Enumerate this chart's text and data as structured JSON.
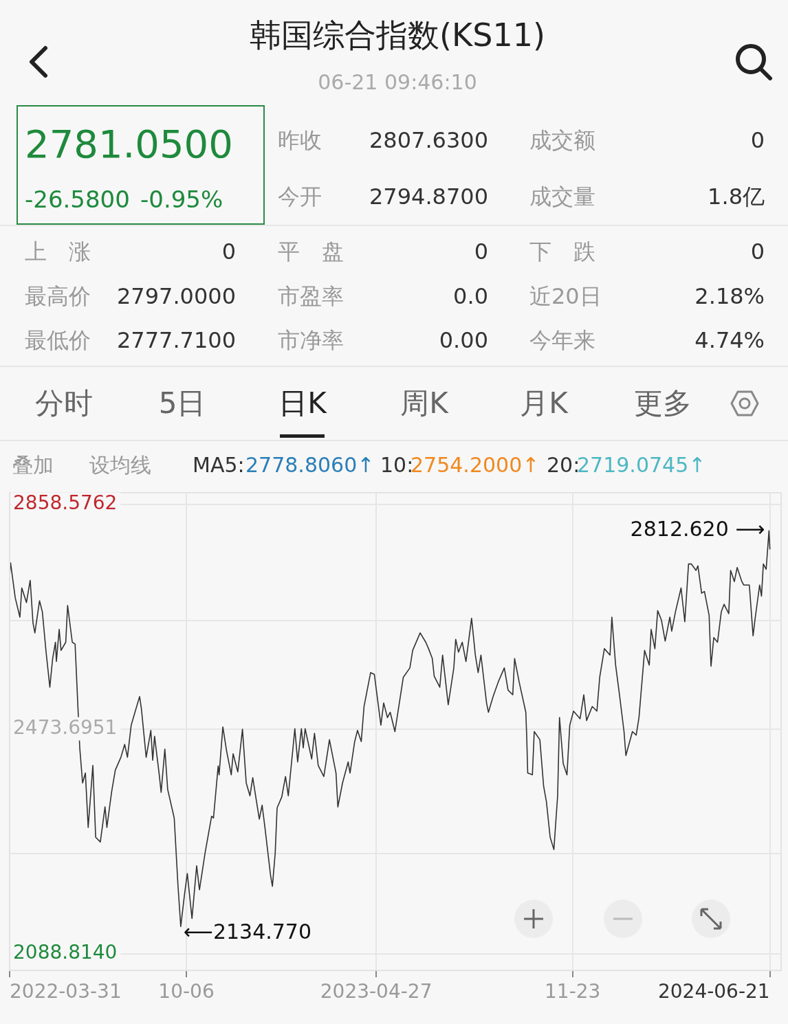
{
  "chart_data": {
    "type": "line",
    "title": "韩国综合指数(KS11)",
    "subtitle": "06-21 09:46:10",
    "color": "#333333",
    "x": [
      "2022-03-31",
      "2022-04-01",
      "2022-04-06",
      "2022-04-11",
      "2022-04-13",
      "2022-04-18",
      "2022-04-22",
      "2022-04-25",
      "2022-04-27",
      "2022-05-02",
      "2022-05-05",
      "2022-05-09",
      "2022-05-13",
      "2022-05-16",
      "2022-05-19",
      "2022-05-20",
      "2022-05-23",
      "2022-05-25",
      "2022-05-30",
      "2022-06-01",
      "2022-06-06",
      "2022-06-09",
      "2022-06-14",
      "2022-06-17",
      "2022-06-20",
      "2022-06-23",
      "2022-06-28",
      "2022-07-01",
      "2022-07-06",
      "2022-07-11",
      "2022-07-13",
      "2022-07-18",
      "2022-07-22",
      "2022-07-28",
      "2022-08-01",
      "2022-08-04",
      "2022-08-08",
      "2022-08-12",
      "2022-08-17",
      "2022-08-19",
      "2022-08-24",
      "2022-08-29",
      "2022-08-31",
      "2022-09-02",
      "2022-09-07",
      "2022-09-09",
      "2022-09-13",
      "2022-09-16",
      "2022-09-23",
      "2022-09-27",
      "2022-09-30",
      "2022-10-04",
      "2022-10-07",
      "2022-10-12",
      "2022-10-17",
      "2022-10-20",
      "2022-10-26",
      "2022-11-02",
      "2022-11-04",
      "2022-11-09",
      "2022-11-10",
      "2022-11-14",
      "2022-11-18",
      "2022-11-23",
      "2022-11-25",
      "2022-11-30",
      "2022-12-05",
      "2022-12-09",
      "2022-12-13",
      "2022-12-16",
      "2022-12-20",
      "2022-12-23",
      "2022-12-26",
      "2022-12-29",
      "2023-01-04",
      "2023-01-06",
      "2023-01-09",
      "2023-01-11",
      "2023-01-16",
      "2023-01-20",
      "2023-01-23",
      "2023-01-30",
      "2023-02-02",
      "2023-02-06",
      "2023-02-08",
      "2023-02-10",
      "2023-02-17",
      "2023-02-20",
      "2023-02-24",
      "2023-03-02",
      "2023-03-08",
      "2023-03-15",
      "2023-03-17",
      "2023-03-22",
      "2023-03-28",
      "2023-03-30",
      "2023-04-04",
      "2023-04-07",
      "2023-04-11",
      "2023-04-14",
      "2023-04-21",
      "2023-04-25",
      "2023-05-02",
      "2023-05-05",
      "2023-05-09",
      "2023-05-12",
      "2023-05-17",
      "2023-05-26",
      "2023-06-02",
      "2023-06-05",
      "2023-06-13",
      "2023-06-19",
      "2023-06-22",
      "2023-06-26",
      "2023-06-28",
      "2023-07-04",
      "2023-07-07",
      "2023-07-13",
      "2023-07-19",
      "2023-07-21",
      "2023-07-24",
      "2023-07-28",
      "2023-08-01",
      "2023-08-07",
      "2023-08-11",
      "2023-08-14",
      "2023-08-17",
      "2023-08-23",
      "2023-08-25",
      "2023-08-30",
      "2023-09-05",
      "2023-09-11",
      "2023-09-15",
      "2023-09-20",
      "2023-09-22",
      "2023-09-27",
      "2023-10-04",
      "2023-10-05",
      "2023-10-06",
      "2023-10-11",
      "2023-10-13",
      "2023-10-19",
      "2023-10-23",
      "2023-10-26",
      "2023-10-30",
      "2023-11-03",
      "2023-11-07",
      "2023-11-09",
      "2023-11-13",
      "2023-11-17",
      "2023-11-20",
      "2023-11-24",
      "2023-12-01",
      "2023-12-05",
      "2023-12-08",
      "2023-12-14",
      "2023-12-19",
      "2023-12-22",
      "2023-12-27",
      "2024-01-02",
      "2024-01-04",
      "2024-01-08",
      "2024-01-12",
      "2024-01-17",
      "2024-01-19",
      "2024-01-26",
      "2024-01-30",
      "2024-02-02",
      "2024-02-08",
      "2024-02-13",
      "2024-02-15",
      "2024-02-19",
      "2024-02-22",
      "2024-02-26",
      "2024-03-01",
      "2024-03-06",
      "2024-03-08",
      "2024-03-12",
      "2024-03-18",
      "2024-03-22",
      "2024-03-26",
      "2024-03-29",
      "2024-04-03",
      "2024-04-05",
      "2024-04-09",
      "2024-04-12",
      "2024-04-17",
      "2024-04-19",
      "2024-04-22",
      "2024-04-26",
      "2024-04-30",
      "2024-05-03",
      "2024-05-08",
      "2024-05-10",
      "2024-05-14",
      "2024-05-17",
      "2024-05-22",
      "2024-05-24",
      "2024-05-30",
      "2024-06-03",
      "2024-06-05",
      "2024-06-10",
      "2024-06-12",
      "2024-06-14",
      "2024-06-17",
      "2024-06-20",
      "2024-06-21"
    ],
    "values": [
      2736,
      2758,
      2698,
      2665,
      2715,
      2690,
      2728,
      2655,
      2638,
      2693,
      2674,
      2605,
      2545,
      2594,
      2622,
      2589,
      2644,
      2608,
      2622,
      2685,
      2622,
      2619,
      2441,
      2381,
      2398,
      2305,
      2411,
      2288,
      2280,
      2340,
      2305,
      2365,
      2403,
      2425,
      2447,
      2425,
      2480,
      2502,
      2529,
      2507,
      2425,
      2471,
      2420,
      2461,
      2395,
      2365,
      2439,
      2370,
      2321,
      2206,
      2135,
      2190,
      2226,
      2149,
      2239,
      2198,
      2261,
      2324,
      2321,
      2410,
      2395,
      2477,
      2436,
      2395,
      2431,
      2400,
      2473,
      2381,
      2359,
      2390,
      2349,
      2319,
      2343,
      2305,
      2223,
      2204,
      2261,
      2338,
      2357,
      2392,
      2359,
      2474,
      2417,
      2474,
      2441,
      2474,
      2422,
      2466,
      2411,
      2392,
      2455,
      2398,
      2340,
      2381,
      2417,
      2398,
      2452,
      2471,
      2452,
      2512,
      2570,
      2567,
      2480,
      2518,
      2493,
      2502,
      2469,
      2562,
      2578,
      2608,
      2638,
      2622,
      2611,
      2594,
      2564,
      2545,
      2600,
      2515,
      2578,
      2627,
      2605,
      2622,
      2589,
      2663,
      2600,
      2570,
      2600,
      2518,
      2502,
      2529,
      2556,
      2578,
      2540,
      2532,
      2594,
      2553,
      2502,
      2458,
      2398,
      2395,
      2469,
      2455,
      2376,
      2349,
      2288,
      2267,
      2359,
      2493,
      2414,
      2395,
      2480,
      2504,
      2491,
      2532,
      2488,
      2512,
      2504,
      2562,
      2611,
      2600,
      2665,
      2583,
      2534,
      2469,
      2428,
      2469,
      2463,
      2493,
      2608,
      2583,
      2644,
      2611,
      2676,
      2660,
      2624,
      2665,
      2641,
      2674,
      2715,
      2657,
      2756,
      2756,
      2745,
      2753,
      2706,
      2709,
      2668,
      2581,
      2630,
      2622,
      2674,
      2687,
      2671,
      2745,
      2726,
      2750,
      2726,
      2720,
      2720,
      2633,
      2660,
      2720,
      2701,
      2756,
      2747,
      2813,
      2781
    ],
    "xlim": [
      "2022-03-31",
      "2024-07-03"
    ],
    "xticks": [
      "2022-03-31",
      {
        "value": "2022-10-06",
        "label": "10-06"
      },
      "2023-04-27",
      {
        "value": "2023-11-23",
        "label": "11-23"
      },
      "2024-06-21"
    ],
    "ylim": [
      2060,
      2878
    ],
    "yticks": [
      2858.5762,
      {
        "value": 2659,
        "label": null
      },
      2473.6951,
      {
        "value": 2260,
        "label": null
      },
      {
        "value": 2088.814,
        "label": "2088.8140"
      }
    ],
    "grid": true,
    "annotations": [
      "2781.0500",
      "-26.5800",
      "-0.95%",
      "昨收",
      "2807.6300",
      "成交额",
      "0",
      "今开",
      "2794.8700",
      "成交量",
      "1.8亿",
      "上　涨",
      "0",
      "平　盘",
      "0",
      "下　跌",
      "0",
      "最高价",
      "2797.0000",
      "市盈率",
      "0.0",
      "近20日",
      "2.18%",
      "最低价",
      "2777.7100",
      "市净率",
      "0.00",
      "今年来",
      "4.74%",
      "分时",
      "5日",
      "日K",
      "周K",
      "月K",
      "更多",
      "叠加",
      "设均线",
      "MA5:",
      "2778.8060↑",
      "10:",
      "2754.2000↑",
      "20:",
      "2719.0745↑",
      {
        "text": "2812.620 ⟶",
        "x": "2024-06-20",
        "y": 2812.62
      },
      {
        "text": "⟵2134.770",
        "x": "2022-09-30",
        "y": 2134.77
      }
    ]
  }
}
